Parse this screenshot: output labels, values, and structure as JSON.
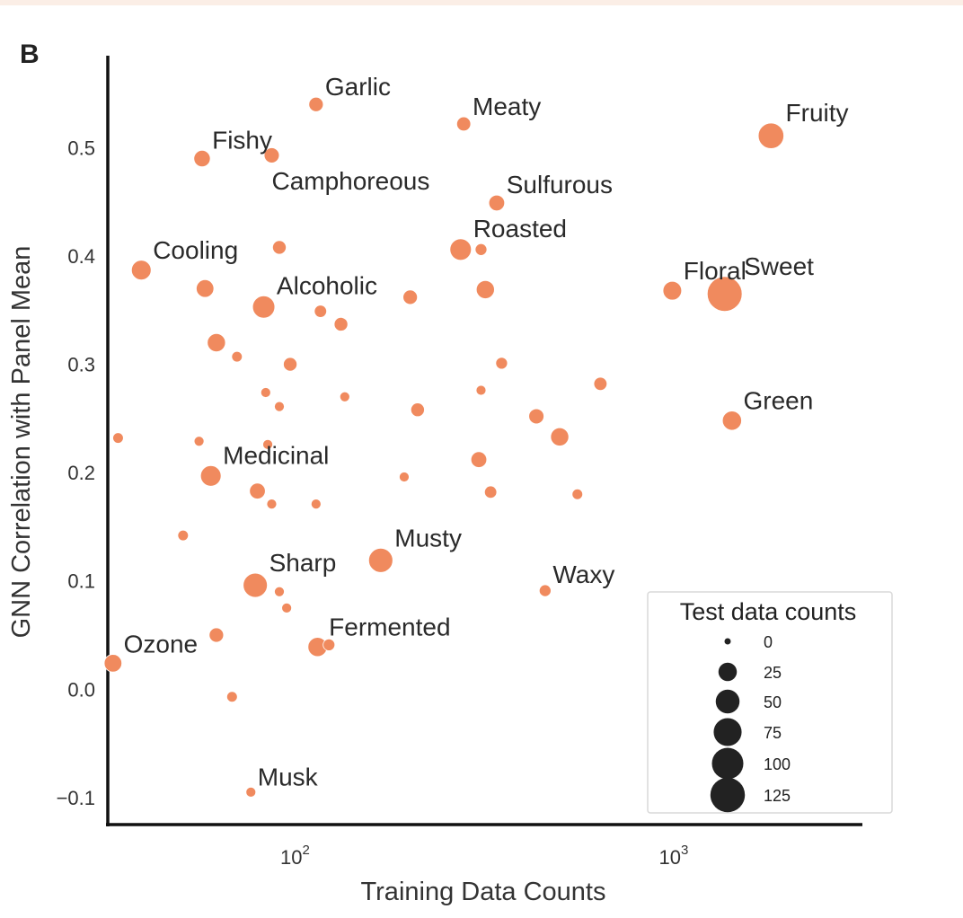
{
  "panel_letter": "B",
  "colors": {
    "point": "#f08a5e",
    "axis": "#111111",
    "legend_marker": "#222222"
  },
  "chart_data": {
    "type": "scatter",
    "xlabel": "Training Data Counts",
    "ylabel": "GNN Correlation with Panel Mean",
    "x_scale": "log",
    "xlim": [
      31,
      3050
    ],
    "ylim": [
      -0.125,
      0.585
    ],
    "x_ticks": [
      {
        "value": 100,
        "base": "10",
        "exp": "2"
      },
      {
        "value": 1000,
        "base": "10",
        "exp": "3"
      }
    ],
    "y_ticks": [
      {
        "value": -0.1,
        "label": "−0.1"
      },
      {
        "value": 0.0,
        "label": "0.0"
      },
      {
        "value": 0.1,
        "label": "0.1"
      },
      {
        "value": 0.2,
        "label": "0.2"
      },
      {
        "value": 0.3,
        "label": "0.3"
      },
      {
        "value": 0.4,
        "label": "0.4"
      },
      {
        "value": 0.5,
        "label": "0.5"
      }
    ],
    "grid": false,
    "legend": {
      "title": "Test data counts",
      "position": "bottom-right",
      "entries": [
        {
          "label": "0",
          "size": 0
        },
        {
          "label": "25",
          "size": 25
        },
        {
          "label": "50",
          "size": 50
        },
        {
          "label": "75",
          "size": 75
        },
        {
          "label": "100",
          "size": 100
        },
        {
          "label": "125",
          "size": 125
        }
      ]
    },
    "points": [
      {
        "x": 110,
        "y": 0.54,
        "size": 12,
        "label": "Garlic"
      },
      {
        "x": 270,
        "y": 0.522,
        "size": 11,
        "label": "Meaty"
      },
      {
        "x": 1750,
        "y": 0.511,
        "size": 60,
        "label": "Fruity"
      },
      {
        "x": 55,
        "y": 0.49,
        "size": 18,
        "label": "Fishy"
      },
      {
        "x": 84,
        "y": 0.493,
        "size": 14,
        "label": "Camphoreous"
      },
      {
        "x": 330,
        "y": 0.449,
        "size": 16,
        "label": "Sulfurous"
      },
      {
        "x": 265,
        "y": 0.406,
        "size": 38,
        "label": "Roasted"
      },
      {
        "x": 300,
        "y": 0.406,
        "size": 6,
        "label": ""
      },
      {
        "x": 88,
        "y": 0.408,
        "size": 10,
        "label": ""
      },
      {
        "x": 38,
        "y": 0.387,
        "size": 30,
        "label": "Cooling"
      },
      {
        "x": 56,
        "y": 0.37,
        "size": 22,
        "label": ""
      },
      {
        "x": 80,
        "y": 0.353,
        "size": 42,
        "label": "Alcoholic"
      },
      {
        "x": 195,
        "y": 0.362,
        "size": 12,
        "label": ""
      },
      {
        "x": 308,
        "y": 0.369,
        "size": 24,
        "label": ""
      },
      {
        "x": 960,
        "y": 0.368,
        "size": 26,
        "label": "Floral"
      },
      {
        "x": 1320,
        "y": 0.365,
        "size": 128,
        "label": "Sweet"
      },
      {
        "x": 113,
        "y": 0.349,
        "size": 7,
        "label": ""
      },
      {
        "x": 128,
        "y": 0.337,
        "size": 10,
        "label": ""
      },
      {
        "x": 60,
        "y": 0.32,
        "size": 24,
        "label": ""
      },
      {
        "x": 68,
        "y": 0.307,
        "size": 4,
        "label": ""
      },
      {
        "x": 94,
        "y": 0.3,
        "size": 10,
        "label": ""
      },
      {
        "x": 340,
        "y": 0.301,
        "size": 6,
        "label": ""
      },
      {
        "x": 620,
        "y": 0.282,
        "size": 9,
        "label": ""
      },
      {
        "x": 81,
        "y": 0.274,
        "size": 3,
        "label": ""
      },
      {
        "x": 131,
        "y": 0.27,
        "size": 3,
        "label": ""
      },
      {
        "x": 300,
        "y": 0.276,
        "size": 3,
        "label": ""
      },
      {
        "x": 88,
        "y": 0.261,
        "size": 3,
        "label": ""
      },
      {
        "x": 204,
        "y": 0.258,
        "size": 10,
        "label": ""
      },
      {
        "x": 420,
        "y": 0.252,
        "size": 14,
        "label": ""
      },
      {
        "x": 1380,
        "y": 0.248,
        "size": 28,
        "label": "Green"
      },
      {
        "x": 33,
        "y": 0.232,
        "size": 4,
        "label": ""
      },
      {
        "x": 54,
        "y": 0.229,
        "size": 3,
        "label": ""
      },
      {
        "x": 82,
        "y": 0.226,
        "size": 3,
        "label": ""
      },
      {
        "x": 484,
        "y": 0.233,
        "size": 24,
        "label": ""
      },
      {
        "x": 58,
        "y": 0.197,
        "size": 34,
        "label": "Medicinal"
      },
      {
        "x": 296,
        "y": 0.212,
        "size": 16,
        "label": ""
      },
      {
        "x": 188,
        "y": 0.196,
        "size": 3,
        "label": ""
      },
      {
        "x": 77,
        "y": 0.183,
        "size": 16,
        "label": ""
      },
      {
        "x": 318,
        "y": 0.182,
        "size": 7,
        "label": ""
      },
      {
        "x": 539,
        "y": 0.18,
        "size": 4,
        "label": ""
      },
      {
        "x": 84,
        "y": 0.171,
        "size": 3,
        "label": ""
      },
      {
        "x": 110,
        "y": 0.171,
        "size": 3,
        "label": ""
      },
      {
        "x": 49,
        "y": 0.142,
        "size": 4,
        "label": ""
      },
      {
        "x": 163,
        "y": 0.119,
        "size": 52,
        "label": "Musty"
      },
      {
        "x": 76,
        "y": 0.096,
        "size": 52,
        "label": "Sharp"
      },
      {
        "x": 88,
        "y": 0.09,
        "size": 3,
        "label": ""
      },
      {
        "x": 443,
        "y": 0.091,
        "size": 6,
        "label": "Waxy"
      },
      {
        "x": 92,
        "y": 0.075,
        "size": 3,
        "label": ""
      },
      {
        "x": 60,
        "y": 0.05,
        "size": 12,
        "label": ""
      },
      {
        "x": 111,
        "y": 0.039,
        "size": 28,
        "label": "Fermented"
      },
      {
        "x": 119,
        "y": 0.041,
        "size": 6,
        "label": ""
      },
      {
        "x": 32,
        "y": 0.024,
        "size": 22,
        "label": "Ozone"
      },
      {
        "x": 66,
        "y": -0.007,
        "size": 4,
        "label": ""
      },
      {
        "x": 74,
        "y": -0.095,
        "size": 3,
        "label": "Musk"
      }
    ]
  }
}
